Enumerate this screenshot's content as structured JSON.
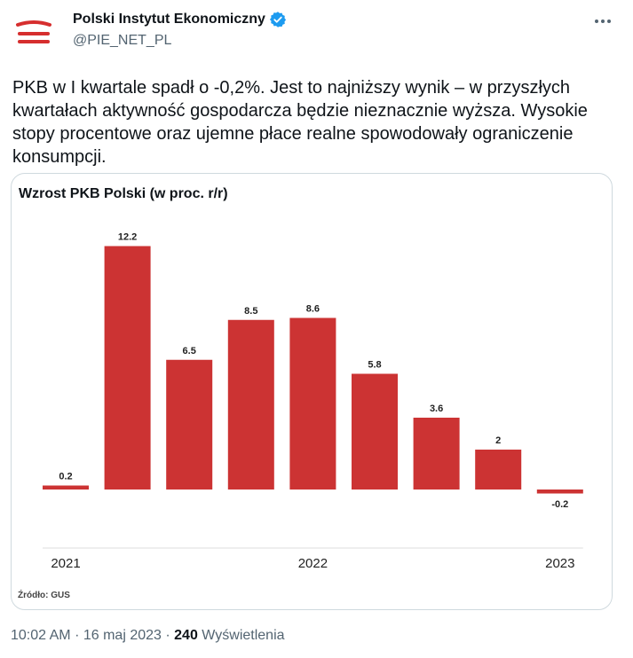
{
  "author": {
    "name": "Polski Instytut Ekonomiczny",
    "handle": "@PIE_NET_PL",
    "avatar_color": "#d62e2e",
    "verified_color": "#1d9bf0",
    "icons": [
      "pie-logo-icon",
      "verified-badge-icon",
      "more-options-icon"
    ]
  },
  "tweet": {
    "text": "PKB w I kwartale spadł o -0,2%. Jest to najniższy wynik – w przyszłych kwartałach aktywność gospodarcza będzie nieznacznie wyższa. Wysokie stopy procentowe oraz ujemne płace realne spowodowały ograniczenie konsumpcji."
  },
  "footer": {
    "time": "10:02 AM",
    "date": "16 maj 2023",
    "views_count": "240",
    "views_label": "Wyświetlenia"
  },
  "chart_data": {
    "type": "bar",
    "title": "Wzrost PKB Polski (w proc. r/r)",
    "source": "Źródło: GUS",
    "values": [
      0.2,
      12.2,
      6.5,
      8.5,
      8.6,
      5.8,
      3.6,
      2,
      -0.2
    ],
    "value_labels": [
      "0.2",
      "12.2",
      "6.5",
      "8.5",
      "8.6",
      "5.8",
      "3.6",
      "2",
      "-0.2"
    ],
    "year_labels": [
      {
        "label": "2021",
        "index": 0
      },
      {
        "label": "2022",
        "index": 4
      },
      {
        "label": "2023",
        "index": 8
      }
    ],
    "bar_color": "#cc3333",
    "grid": false,
    "legend": false
  }
}
